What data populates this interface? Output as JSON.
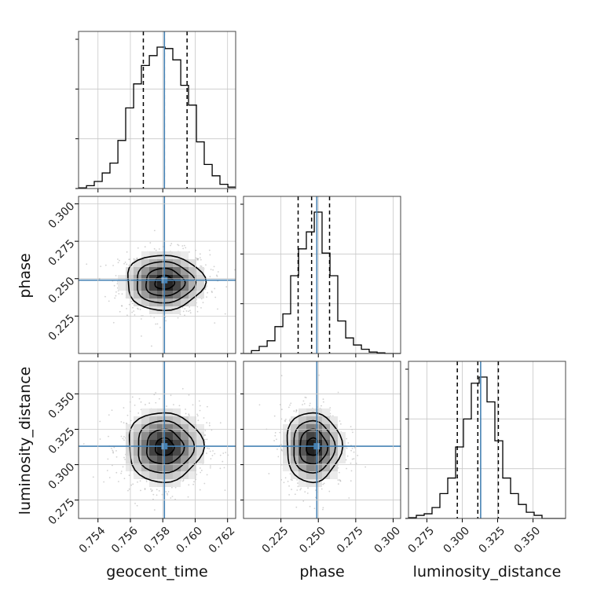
{
  "chart_data": {
    "type": "corner",
    "parameters": [
      "geocent_time",
      "phase",
      "luminosity_distance"
    ],
    "truths": {
      "geocent_time": 0.7581,
      "phase": 0.249,
      "luminosity_distance": 0.313
    },
    "truth_color": "#4682b4",
    "grid": true,
    "axes": {
      "geocent_time": {
        "range": [
          0.7528,
          0.7625
        ],
        "ticks": [
          0.754,
          0.756,
          0.758,
          0.76,
          0.762
        ],
        "tick_labels": [
          "0.754",
          "0.756",
          "0.758",
          "0.760",
          "0.762"
        ]
      },
      "phase": {
        "range": [
          0.2,
          0.305
        ],
        "ticks": [
          0.225,
          0.25,
          0.275,
          0.3
        ],
        "tick_labels": [
          "0.225",
          "0.250",
          "0.275",
          "0.300"
        ]
      },
      "luminosity_distance": {
        "range": [
          0.262,
          0.373
        ],
        "ticks": [
          0.275,
          0.3,
          0.325,
          0.35
        ],
        "tick_labels": [
          "0.275",
          "0.300",
          "0.325",
          "0.350"
        ]
      }
    },
    "histograms": {
      "geocent_time": {
        "bin_edges": [
          0.7528,
          0.75329,
          0.75377,
          0.75426,
          0.75474,
          0.75523,
          0.75571,
          0.7562,
          0.75668,
          0.75717,
          0.75765,
          0.75814,
          0.75862,
          0.75911,
          0.75959,
          0.76008,
          0.76056,
          0.76105,
          0.76153,
          0.76202,
          0.7625
        ],
        "counts": [
          0.005,
          0.02,
          0.05,
          0.11,
          0.18,
          0.34,
          0.57,
          0.74,
          0.87,
          0.94,
          1.0,
          0.99,
          0.91,
          0.73,
          0.59,
          0.33,
          0.17,
          0.09,
          0.03,
          0.01
        ],
        "quantiles": [
          0.7568,
          0.7581,
          0.7595
        ]
      },
      "phase": {
        "bin_edges": [
          0.2,
          0.2053,
          0.2105,
          0.2158,
          0.221,
          0.2263,
          0.2315,
          0.2368,
          0.242,
          0.2473,
          0.2525,
          0.2578,
          0.263,
          0.2683,
          0.2735,
          0.2788,
          0.284,
          0.2893,
          0.2945,
          0.2998,
          0.305
        ],
        "counts": [
          0.0,
          0.02,
          0.05,
          0.09,
          0.19,
          0.28,
          0.55,
          0.74,
          0.86,
          1.0,
          0.71,
          0.55,
          0.23,
          0.11,
          0.06,
          0.03,
          0.01,
          0.005,
          0.0,
          0.0
        ],
        "quantiles": [
          0.2365,
          0.2455,
          0.2575
        ]
      },
      "luminosity_distance": {
        "bin_edges": [
          0.262,
          0.26755,
          0.2731,
          0.27865,
          0.2842,
          0.28975,
          0.2953,
          0.30085,
          0.3064,
          0.31195,
          0.3175,
          0.32305,
          0.3286,
          0.33415,
          0.3397,
          0.34525,
          0.3508,
          0.35635,
          0.3619,
          0.36745,
          0.373
        ],
        "counts": [
          0.005,
          0.02,
          0.03,
          0.07,
          0.16,
          0.26,
          0.46,
          0.64,
          0.87,
          0.91,
          0.75,
          0.5,
          0.26,
          0.16,
          0.09,
          0.04,
          0.02,
          0.0,
          0.0,
          0.0
        ],
        "quantiles": [
          0.2965,
          0.311,
          0.3255
        ]
      }
    },
    "joint": [
      {
        "x": "geocent_time",
        "y": "phase",
        "mean": [
          0.7581,
          0.2475
        ],
        "sd": [
          0.0012,
          0.0092
        ],
        "rho": 0.0
      },
      {
        "x": "geocent_time",
        "y": "luminosity_distance",
        "mean": [
          0.7581,
          0.3125
        ],
        "sd": [
          0.00115,
          0.0123
        ],
        "rho": 0.0
      },
      {
        "x": "phase",
        "y": "luminosity_distance",
        "mean": [
          0.2465,
          0.3125
        ],
        "sd": [
          0.0092,
          0.0123
        ],
        "rho": 0.0
      }
    ]
  }
}
